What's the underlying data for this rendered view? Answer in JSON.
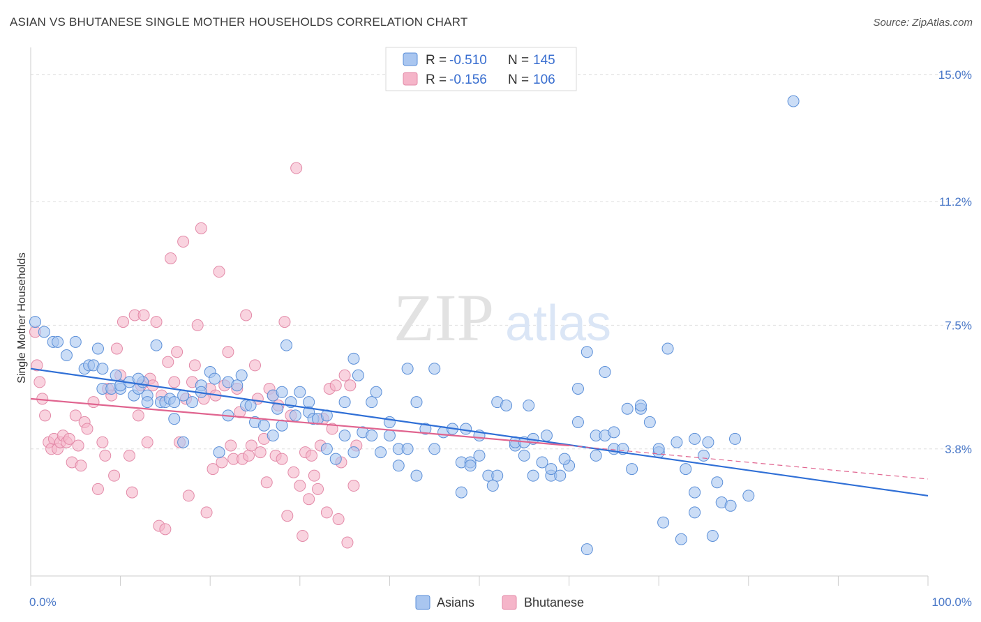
{
  "title": "ASIAN VS BHUTANESE SINGLE MOTHER HOUSEHOLDS CORRELATION CHART",
  "source": "Source: ZipAtlas.com",
  "watermark": {
    "zip": "ZIP",
    "atlas": "atlas"
  },
  "colors": {
    "asian_fill": "#a9c6f0",
    "asian_stroke": "#5b8fd8",
    "asian_line": "#2f6fd6",
    "bhutanese_fill": "#f5b5c9",
    "bhutanese_stroke": "#e38aa8",
    "bhutanese_line": "#e0648f",
    "tick": "#4a78c8",
    "grid": "#dddddd"
  },
  "legend": {
    "rows": [
      {
        "r_label": "R = ",
        "r_value": "-0.510",
        "n_label": "N = ",
        "n_value": "145"
      },
      {
        "r_label": "R = ",
        "r_value": "-0.156",
        "n_label": "N = ",
        "n_value": "106"
      }
    ]
  },
  "bottom_legend": [
    "Asians",
    "Bhutanese"
  ],
  "chart_data": {
    "type": "scatter",
    "title": "ASIAN VS BHUTANESE SINGLE MOTHER HOUSEHOLDS CORRELATION CHART",
    "xlabel": "",
    "ylabel": "Single Mother Households",
    "xlim": [
      0,
      100
    ],
    "ylim": [
      0,
      15.6
    ],
    "x_tick_labels": [
      "0.0%",
      "100.0%"
    ],
    "y_ticks": [
      3.8,
      7.5,
      11.2,
      15.0
    ],
    "y_tick_labels": [
      "3.8%",
      "7.5%",
      "11.2%",
      "15.0%"
    ],
    "grid": true,
    "legend_position": "top-center",
    "series": [
      {
        "name": "Asians",
        "r": -0.51,
        "n": 145,
        "trend": {
          "x0": 0,
          "y0": 6.2,
          "x1": 100,
          "y1": 2.4
        },
        "points": [
          [
            0.5,
            7.6
          ],
          [
            1.5,
            7.3
          ],
          [
            2.5,
            7.0
          ],
          [
            3,
            7.0
          ],
          [
            4,
            6.6
          ],
          [
            5,
            7.0
          ],
          [
            6,
            6.2
          ],
          [
            6.5,
            6.3
          ],
          [
            7,
            6.3
          ],
          [
            7.5,
            6.8
          ],
          [
            8,
            6.2
          ],
          [
            8,
            5.6
          ],
          [
            9,
            5.6
          ],
          [
            9.5,
            6.0
          ],
          [
            10,
            5.6
          ],
          [
            10,
            5.7
          ],
          [
            11,
            5.8
          ],
          [
            11.5,
            5.4
          ],
          [
            12,
            5.6
          ],
          [
            12.5,
            5.8
          ],
          [
            13,
            5.4
          ],
          [
            13,
            5.2
          ],
          [
            14,
            6.9
          ],
          [
            14.5,
            5.2
          ],
          [
            15,
            5.2
          ],
          [
            15.5,
            5.3
          ],
          [
            16,
            4.7
          ],
          [
            16,
            5.2
          ],
          [
            17,
            5.4
          ],
          [
            17,
            4.0
          ],
          [
            18,
            5.2
          ],
          [
            19,
            5.7
          ],
          [
            19,
            5.5
          ],
          [
            20,
            6.1
          ],
          [
            20.5,
            5.9
          ],
          [
            21,
            3.7
          ],
          [
            22,
            5.8
          ],
          [
            22,
            4.8
          ],
          [
            23,
            5.7
          ],
          [
            23.5,
            6.0
          ],
          [
            24,
            5.1
          ],
          [
            24.5,
            5.1
          ],
          [
            25,
            4.6
          ],
          [
            26,
            4.5
          ],
          [
            27,
            5.4
          ],
          [
            27,
            4.2
          ],
          [
            27.5,
            5.0
          ],
          [
            28,
            5.5
          ],
          [
            28.5,
            6.9
          ],
          [
            29,
            5.2
          ],
          [
            29.5,
            4.8
          ],
          [
            30,
            5.5
          ],
          [
            31,
            5.2
          ],
          [
            31,
            4.9
          ],
          [
            31.5,
            4.7
          ],
          [
            32,
            4.7
          ],
          [
            33,
            3.8
          ],
          [
            33,
            4.8
          ],
          [
            34,
            3.5
          ],
          [
            35,
            4.2
          ],
          [
            35,
            5.2
          ],
          [
            36,
            3.7
          ],
          [
            36,
            6.5
          ],
          [
            36.5,
            6.0
          ],
          [
            37,
            4.3
          ],
          [
            38,
            4.2
          ],
          [
            38,
            5.2
          ],
          [
            39,
            3.7
          ],
          [
            40,
            4.6
          ],
          [
            40,
            4.2
          ],
          [
            41,
            3.8
          ],
          [
            41,
            3.3
          ],
          [
            42,
            3.8
          ],
          [
            42,
            6.2
          ],
          [
            43,
            5.2
          ],
          [
            43,
            3.0
          ],
          [
            44,
            4.4
          ],
          [
            45,
            3.8
          ],
          [
            45,
            6.2
          ],
          [
            46,
            4.3
          ],
          [
            47,
            4.4
          ],
          [
            48,
            3.4
          ],
          [
            48,
            2.5
          ],
          [
            49,
            3.4
          ],
          [
            49,
            3.3
          ],
          [
            50,
            4.2
          ],
          [
            50,
            3.6
          ],
          [
            51,
            3.0
          ],
          [
            51.5,
            2.7
          ],
          [
            52,
            3.0
          ],
          [
            52,
            5.2
          ],
          [
            53,
            5.1
          ],
          [
            54,
            3.9
          ],
          [
            54,
            4.0
          ],
          [
            55,
            3.6
          ],
          [
            55,
            4.0
          ],
          [
            55.5,
            5.1
          ],
          [
            56,
            4.1
          ],
          [
            56,
            3.0
          ],
          [
            57,
            3.4
          ],
          [
            57.5,
            4.2
          ],
          [
            58,
            3.0
          ],
          [
            58,
            3.2
          ],
          [
            59,
            3.0
          ],
          [
            60,
            3.3
          ],
          [
            61,
            5.6
          ],
          [
            61,
            4.6
          ],
          [
            62,
            6.7
          ],
          [
            62,
            0.8
          ],
          [
            63,
            4.2
          ],
          [
            63,
            3.6
          ],
          [
            64,
            6.1
          ],
          [
            64,
            4.2
          ],
          [
            65,
            4.3
          ],
          [
            65,
            3.8
          ],
          [
            66,
            3.8
          ],
          [
            67,
            3.2
          ],
          [
            68,
            5.0
          ],
          [
            68,
            5.1
          ],
          [
            69,
            4.6
          ],
          [
            70,
            3.7
          ],
          [
            70,
            3.8
          ],
          [
            71,
            6.8
          ],
          [
            72,
            4.0
          ],
          [
            73,
            3.2
          ],
          [
            74,
            2.5
          ],
          [
            74,
            4.1
          ],
          [
            74,
            1.9
          ],
          [
            75,
            3.6
          ],
          [
            76,
            1.2
          ],
          [
            77,
            2.2
          ],
          [
            78,
            2.1
          ],
          [
            80,
            2.4
          ],
          [
            70.5,
            1.6
          ],
          [
            76.5,
            2.8
          ],
          [
            72.5,
            1.1
          ],
          [
            75.5,
            4.0
          ],
          [
            78.5,
            4.1
          ],
          [
            85,
            14.2
          ],
          [
            66.5,
            5.0
          ],
          [
            12,
            5.9
          ],
          [
            28,
            4.5
          ],
          [
            38.5,
            5.5
          ],
          [
            48.5,
            4.4
          ],
          [
            59.5,
            3.5
          ]
        ]
      },
      {
        "name": "Bhutanese",
        "r": -0.156,
        "n": 106,
        "trend": {
          "x0": 0,
          "y0": 5.3,
          "x1": 60,
          "y1": 3.9
        },
        "trend_ext": {
          "x0": 60,
          "y0": 3.9,
          "x1": 100,
          "y1": 2.9
        },
        "points": [
          [
            0.5,
            7.3
          ],
          [
            0.7,
            6.3
          ],
          [
            1,
            5.8
          ],
          [
            1.3,
            5.3
          ],
          [
            1.6,
            4.8
          ],
          [
            2,
            4.0
          ],
          [
            2.3,
            3.8
          ],
          [
            2.6,
            4.1
          ],
          [
            3,
            3.8
          ],
          [
            3.3,
            4.0
          ],
          [
            3.6,
            4.2
          ],
          [
            4,
            4.0
          ],
          [
            4.3,
            4.1
          ],
          [
            4.6,
            3.4
          ],
          [
            5,
            4.8
          ],
          [
            5.3,
            3.9
          ],
          [
            5.6,
            3.3
          ],
          [
            6,
            4.6
          ],
          [
            6.3,
            4.4
          ],
          [
            7,
            5.2
          ],
          [
            7.5,
            2.6
          ],
          [
            8,
            4.0
          ],
          [
            8.3,
            3.6
          ],
          [
            8.6,
            5.6
          ],
          [
            9,
            5.4
          ],
          [
            9.3,
            3.0
          ],
          [
            9.6,
            6.8
          ],
          [
            10,
            6.0
          ],
          [
            10.3,
            7.6
          ],
          [
            11,
            3.6
          ],
          [
            11.3,
            2.5
          ],
          [
            11.6,
            7.8
          ],
          [
            12,
            4.8
          ],
          [
            12.3,
            5.7
          ],
          [
            12.6,
            7.8
          ],
          [
            13,
            4.0
          ],
          [
            13.3,
            5.9
          ],
          [
            13.6,
            5.7
          ],
          [
            14,
            7.6
          ],
          [
            14.3,
            1.5
          ],
          [
            14.6,
            5.4
          ],
          [
            15,
            1.4
          ],
          [
            15.3,
            6.4
          ],
          [
            15.6,
            9.5
          ],
          [
            16,
            5.8
          ],
          [
            16.3,
            6.7
          ],
          [
            16.6,
            4.0
          ],
          [
            17,
            10.0
          ],
          [
            17.3,
            5.3
          ],
          [
            17.6,
            2.4
          ],
          [
            18,
            5.8
          ],
          [
            18.3,
            6.3
          ],
          [
            18.6,
            7.5
          ],
          [
            19,
            10.4
          ],
          [
            19.3,
            5.3
          ],
          [
            19.6,
            1.9
          ],
          [
            20,
            5.6
          ],
          [
            20.3,
            3.2
          ],
          [
            20.6,
            5.4
          ],
          [
            21,
            9.1
          ],
          [
            21.3,
            3.4
          ],
          [
            21.6,
            5.7
          ],
          [
            22,
            6.7
          ],
          [
            22.3,
            3.9
          ],
          [
            22.6,
            3.5
          ],
          [
            23,
            5.6
          ],
          [
            23.3,
            4.9
          ],
          [
            23.6,
            3.5
          ],
          [
            24,
            7.8
          ],
          [
            24.3,
            3.6
          ],
          [
            24.6,
            3.9
          ],
          [
            25,
            6.3
          ],
          [
            25.3,
            5.3
          ],
          [
            25.6,
            3.7
          ],
          [
            26,
            4.1
          ],
          [
            26.3,
            2.8
          ],
          [
            26.6,
            5.6
          ],
          [
            27,
            5.4
          ],
          [
            27.3,
            3.6
          ],
          [
            27.6,
            5.1
          ],
          [
            28,
            3.5
          ],
          [
            28.3,
            7.6
          ],
          [
            28.6,
            1.8
          ],
          [
            29,
            4.8
          ],
          [
            29.3,
            3.1
          ],
          [
            29.6,
            12.2
          ],
          [
            30,
            2.7
          ],
          [
            30.3,
            1.2
          ],
          [
            30.6,
            3.7
          ],
          [
            31,
            2.3
          ],
          [
            31.3,
            3.6
          ],
          [
            31.6,
            3.0
          ],
          [
            32,
            2.6
          ],
          [
            32.3,
            3.9
          ],
          [
            32.6,
            4.7
          ],
          [
            33,
            1.9
          ],
          [
            33.3,
            5.6
          ],
          [
            33.6,
            4.4
          ],
          [
            34,
            5.7
          ],
          [
            34.3,
            1.7
          ],
          [
            34.6,
            3.4
          ],
          [
            35,
            6.0
          ],
          [
            35.3,
            1.0
          ],
          [
            35.6,
            5.7
          ],
          [
            36,
            2.7
          ],
          [
            36.3,
            3.9
          ]
        ]
      }
    ]
  }
}
